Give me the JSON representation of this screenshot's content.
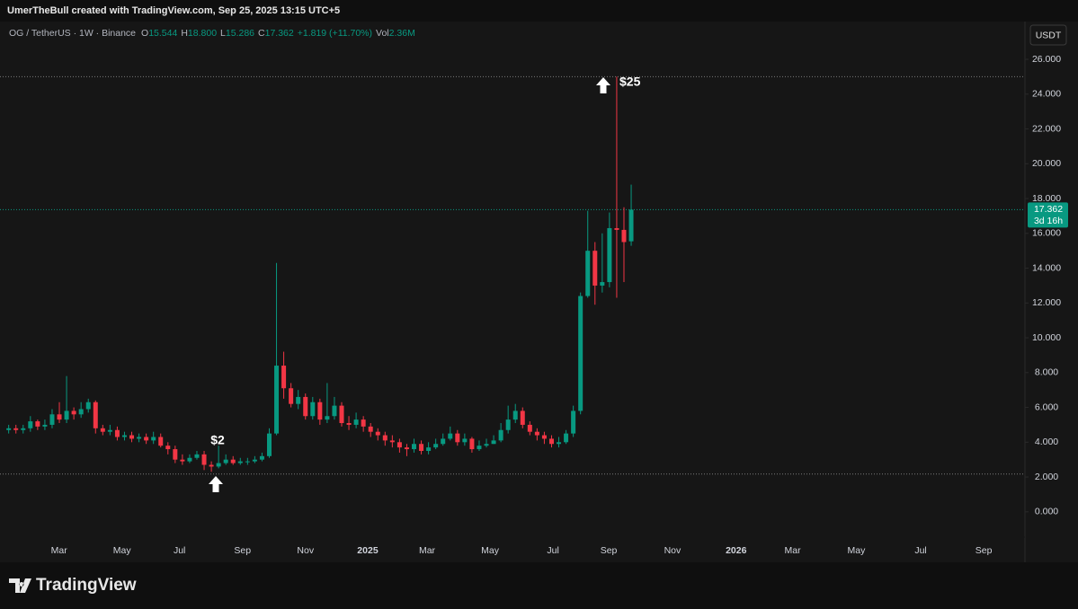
{
  "header": "UmerTheBull created with TradingView.com, Sep 25, 2025 13:15 UTC+5",
  "chart_data": {
    "type": "candlestick",
    "symbol": "OG / TetherUS · 1W · Binance",
    "legend_items": [
      {
        "key": "O",
        "value": "15.544"
      },
      {
        "key": "H",
        "value": "18.800"
      },
      {
        "key": "L",
        "value": "15.286"
      },
      {
        "key": "C",
        "value": "17.362"
      },
      {
        "key": "",
        "value": "+1.819 (+11.70%)"
      },
      {
        "key": "Vol",
        "value": "2.36M"
      }
    ],
    "currency": "USDT",
    "countdown": "3d 16h",
    "up_color": "#089981",
    "down_color": "#f23645",
    "grid": false,
    "open": [
      4.7,
      4.8,
      4.7,
      4.8,
      5.2,
      4.9,
      5.0,
      5.6,
      5.3,
      5.8,
      5.6,
      5.9,
      6.3,
      4.8,
      4.6,
      4.7,
      4.3,
      4.4,
      4.2,
      4.3,
      4.1,
      4.3,
      3.8,
      3.6,
      3.0,
      2.9,
      3.1,
      3.3,
      2.7,
      2.6,
      2.8,
      3.0,
      2.8,
      2.9,
      2.9,
      3.0,
      3.2,
      4.5,
      8.4,
      7.1,
      6.2,
      6.6,
      5.5,
      6.3,
      5.3,
      5.5,
      6.1,
      5.1,
      5.0,
      5.3,
      4.9,
      4.6,
      4.4,
      4.1,
      4.0,
      3.7,
      3.6,
      3.9,
      3.5,
      3.7,
      3.9,
      4.2,
      4.5,
      4.0,
      4.2,
      3.6,
      3.8,
      3.9,
      4.1,
      4.7,
      5.3,
      5.8,
      5.0,
      4.6,
      4.4,
      4.2,
      3.9,
      4.0,
      4.5,
      5.8,
      12.4,
      15.0,
      13.0,
      13.2,
      16.3,
      16.2,
      15.544
    ],
    "high": [
      5.0,
      5.0,
      5.0,
      5.5,
      5.3,
      5.3,
      5.9,
      6.3,
      7.8,
      6.0,
      6.3,
      6.5,
      6.4,
      5.0,
      5.0,
      4.9,
      4.6,
      4.6,
      4.5,
      4.5,
      4.6,
      4.5,
      4.0,
      3.8,
      3.3,
      3.3,
      3.5,
      3.5,
      2.9,
      3.8,
      3.3,
      3.2,
      3.1,
      3.1,
      3.2,
      3.4,
      4.8,
      14.3,
      9.2,
      7.4,
      7.0,
      6.8,
      6.6,
      6.5,
      7.4,
      6.6,
      6.3,
      5.5,
      5.7,
      5.5,
      5.1,
      4.8,
      4.6,
      4.4,
      4.2,
      3.9,
      4.2,
      4.1,
      4.0,
      4.2,
      4.5,
      4.9,
      4.7,
      4.5,
      4.3,
      4.1,
      4.2,
      4.4,
      5.1,
      6.1,
      6.2,
      6.0,
      5.2,
      4.8,
      4.6,
      4.4,
      4.3,
      4.7,
      6.1,
      12.6,
      17.3,
      15.5,
      16.0,
      17.2,
      25.0,
      17.5,
      18.8
    ],
    "low": [
      4.5,
      4.5,
      4.5,
      4.6,
      4.7,
      4.7,
      4.8,
      5.1,
      5.1,
      5.3,
      5.4,
      5.7,
      4.5,
      4.4,
      4.4,
      4.1,
      4.1,
      4.0,
      4.0,
      3.9,
      3.9,
      3.7,
      3.3,
      2.8,
      2.7,
      2.8,
      3.0,
      2.4,
      2.3,
      2.5,
      2.7,
      2.7,
      2.7,
      2.7,
      2.8,
      2.9,
      3.1,
      4.4,
      6.5,
      6.0,
      5.9,
      5.3,
      5.3,
      5.0,
      5.1,
      5.3,
      4.9,
      4.7,
      4.8,
      4.6,
      4.3,
      4.1,
      3.8,
      3.7,
      3.4,
      3.2,
      3.4,
      3.3,
      3.3,
      3.6,
      3.8,
      4.1,
      3.8,
      3.8,
      3.4,
      3.5,
      3.7,
      3.9,
      4.0,
      4.5,
      5.1,
      4.8,
      4.4,
      4.1,
      3.9,
      3.7,
      3.7,
      3.9,
      4.3,
      5.6,
      12.3,
      11.9,
      12.6,
      12.9,
      12.3,
      13.2,
      15.286
    ],
    "close": [
      4.8,
      4.7,
      4.8,
      5.2,
      4.9,
      5.0,
      5.6,
      5.3,
      5.8,
      5.6,
      5.9,
      6.3,
      4.8,
      4.6,
      4.7,
      4.3,
      4.4,
      4.2,
      4.3,
      4.1,
      4.3,
      3.8,
      3.6,
      3.0,
      2.9,
      3.1,
      3.3,
      2.7,
      2.6,
      2.8,
      3.0,
      2.8,
      2.9,
      2.9,
      3.0,
      3.2,
      4.5,
      8.4,
      7.1,
      6.2,
      6.6,
      5.5,
      6.3,
      5.3,
      5.5,
      6.1,
      5.1,
      5.0,
      5.3,
      4.9,
      4.6,
      4.4,
      4.1,
      4.0,
      3.7,
      3.6,
      3.9,
      3.5,
      3.7,
      3.9,
      4.2,
      4.5,
      4.0,
      4.2,
      3.6,
      3.8,
      3.9,
      4.1,
      4.7,
      5.3,
      5.8,
      5.0,
      4.6,
      4.4,
      4.2,
      3.9,
      4.0,
      4.5,
      5.8,
      12.4,
      15.0,
      13.0,
      13.2,
      16.3,
      16.2,
      15.5,
      17.362
    ],
    "hlines": [
      25.0,
      2.17
    ],
    "annotations": [
      "$25",
      "$2"
    ],
    "xlim": [
      -1.2,
      140.4
    ],
    "xticks": [
      {
        "value": 6.96,
        "label": "Mar"
      },
      {
        "value": 15.65,
        "label": "May"
      },
      {
        "value": 23.6,
        "label": "Jul"
      },
      {
        "value": 32.3,
        "label": "Sep"
      },
      {
        "value": 41.0,
        "label": "Nov"
      },
      {
        "value": 49.6,
        "label": "2025"
      },
      {
        "value": 57.8,
        "label": "Mar"
      },
      {
        "value": 66.5,
        "label": "May"
      },
      {
        "value": 75.2,
        "label": "Jul"
      },
      {
        "value": 82.9,
        "label": "Sep"
      },
      {
        "value": 91.7,
        "label": "Nov"
      },
      {
        "value": 100.5,
        "label": "2026"
      },
      {
        "value": 108.3,
        "label": "Mar"
      },
      {
        "value": 117.1,
        "label": "May"
      },
      {
        "value": 126.0,
        "label": "Jul"
      },
      {
        "value": 134.7,
        "label": "Sep"
      }
    ],
    "ylim": [
      -2.9,
      28.17
    ],
    "yticks": [
      {
        "value": 0,
        "label": "0.000"
      },
      {
        "value": 2,
        "label": "2.000"
      },
      {
        "value": 4,
        "label": "4.000"
      },
      {
        "value": 6,
        "label": "6.000"
      },
      {
        "value": 8,
        "label": "8.000"
      },
      {
        "value": 10,
        "label": "10.000"
      },
      {
        "value": 12,
        "label": "12.000"
      },
      {
        "value": 14,
        "label": "14.000"
      },
      {
        "value": 16,
        "label": "16.000"
      },
      {
        "value": 18,
        "label": "18.000"
      },
      {
        "value": 20,
        "label": "20.000"
      },
      {
        "value": 22,
        "label": "22.000"
      },
      {
        "value": 24,
        "label": "24.000"
      },
      {
        "value": 26,
        "label": "26.000"
      }
    ],
    "watermark": "TradingView"
  }
}
